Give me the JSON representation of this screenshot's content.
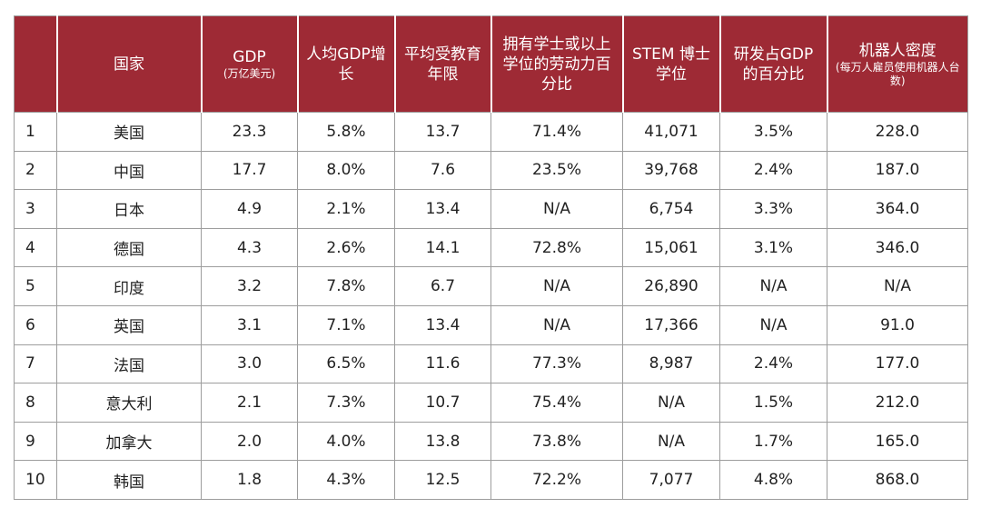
{
  "headers": {
    "blank": "",
    "country": "国家",
    "gdp": "GDP",
    "gdp_unit": "(万亿美元)",
    "gdp_growth": "人均GDP增长",
    "education_years": "平均受教育年限",
    "bachelor_share": "拥有学士或以上学位的劳动力百分比",
    "stem_phd": "STEM 博士学位",
    "rd_gdp": "研发占GDP的百分比",
    "robot_density": "机器人密度",
    "robot_density_unit": "(每万人雇员使用机器人台数)"
  },
  "rows": [
    {
      "rank": "1",
      "country": "美国",
      "gdp": "23.3",
      "growth": "5.8%",
      "edu": "13.7",
      "bachelor": "71.4%",
      "stem": "41,071",
      "rd": "3.5%",
      "robot": "228.0"
    },
    {
      "rank": "2",
      "country": "中国",
      "gdp": "17.7",
      "growth": "8.0%",
      "edu": "7.6",
      "bachelor": "23.5%",
      "stem": "39,768",
      "rd": "2.4%",
      "robot": "187.0"
    },
    {
      "rank": "3",
      "country": "日本",
      "gdp": "4.9",
      "growth": "2.1%",
      "edu": "13.4",
      "bachelor": "N/A",
      "stem": "6,754",
      "rd": "3.3%",
      "robot": "364.0"
    },
    {
      "rank": "4",
      "country": "德国",
      "gdp": "4.3",
      "growth": "2.6%",
      "edu": "14.1",
      "bachelor": "72.8%",
      "stem": "15,061",
      "rd": "3.1%",
      "robot": "346.0"
    },
    {
      "rank": "5",
      "country": "印度",
      "gdp": "3.2",
      "growth": "7.8%",
      "edu": "6.7",
      "bachelor": "N/A",
      "stem": "26,890",
      "rd": "N/A",
      "robot": "N/A"
    },
    {
      "rank": "6",
      "country": "英国",
      "gdp": "3.1",
      "growth": "7.1%",
      "edu": "13.4",
      "bachelor": "N/A",
      "stem": "17,366",
      "rd": "N/A",
      "robot": "91.0"
    },
    {
      "rank": "7",
      "country": "法国",
      "gdp": "3.0",
      "growth": "6.5%",
      "edu": "11.6",
      "bachelor": "77.3%",
      "stem": "8,987",
      "rd": "2.4%",
      "robot": "177.0"
    },
    {
      "rank": "8",
      "country": "意大利",
      "gdp": "2.1",
      "growth": "7.3%",
      "edu": "10.7",
      "bachelor": "75.4%",
      "stem": "N/A",
      "rd": "1.5%",
      "robot": "212.0"
    },
    {
      "rank": "9",
      "country": "加拿大",
      "gdp": "2.0",
      "growth": "4.0%",
      "edu": "13.8",
      "bachelor": "73.8%",
      "stem": "N/A",
      "rd": "1.7%",
      "robot": "165.0"
    },
    {
      "rank": "10",
      "country": "韩国",
      "gdp": "1.8",
      "growth": "4.3%",
      "edu": "12.5",
      "bachelor": "72.2%",
      "stem": "7,077",
      "rd": "4.8%",
      "robot": "868.0"
    }
  ],
  "colors": {
    "header_bg": "#9e2a35",
    "header_text": "#ffffff",
    "grid": "#9d9d9d"
  }
}
